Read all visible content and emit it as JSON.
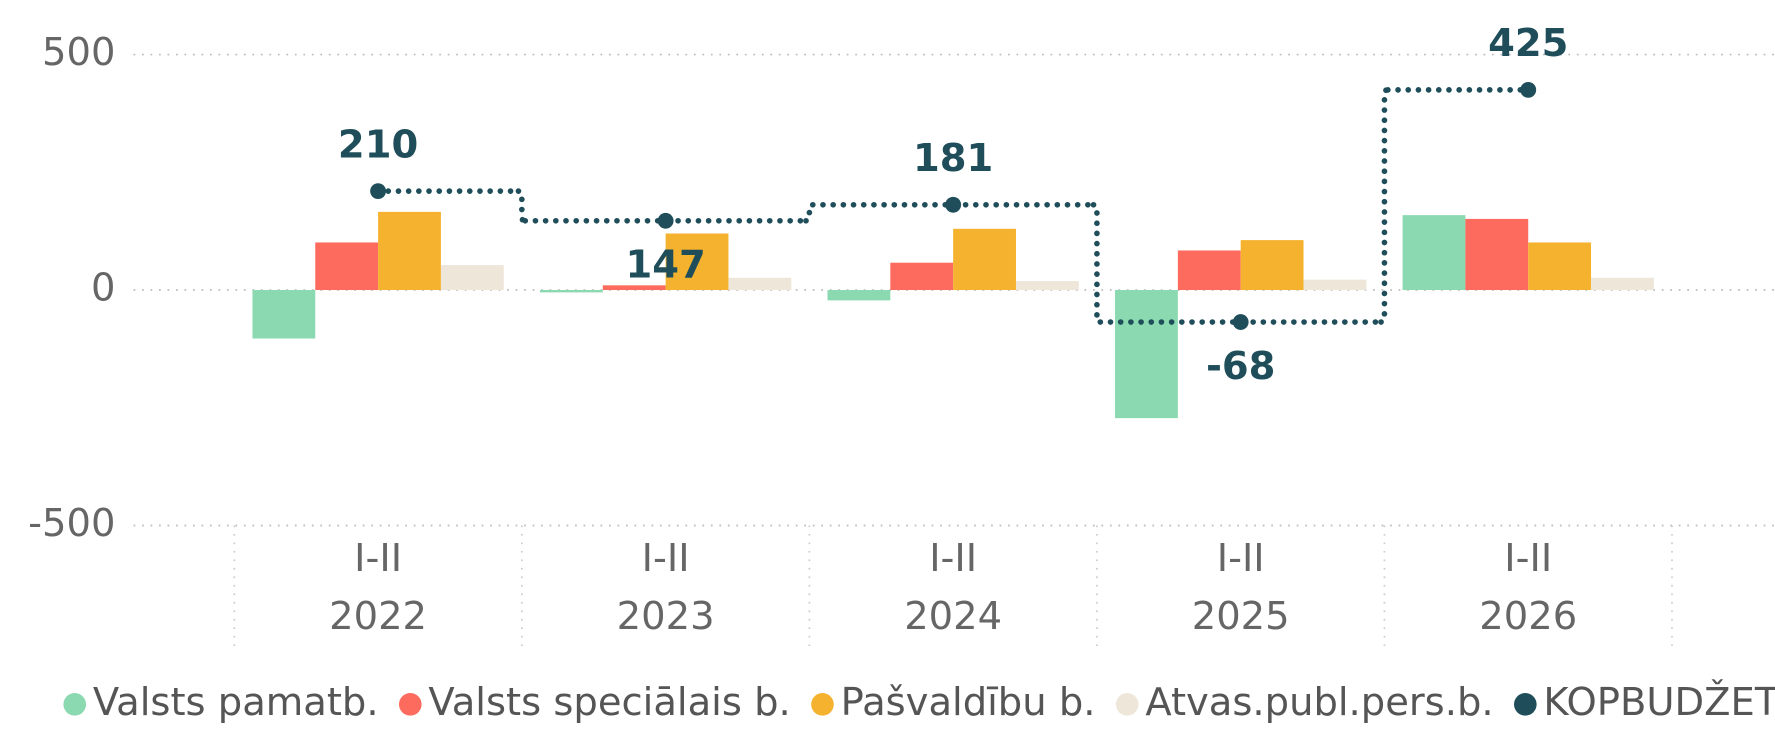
{
  "chart_data": {
    "type": "bar",
    "categories": [
      [
        "I-II",
        "2022"
      ],
      [
        "I-II",
        "2023"
      ],
      [
        "I-II",
        "2024"
      ],
      [
        "I-II",
        "2025"
      ],
      [
        "I-II",
        "2026"
      ]
    ],
    "series": [
      {
        "name": "Valsts pamatb.",
        "color": "#8ad9b0",
        "values": [
          -103,
          -5,
          -22,
          -272,
          159
        ]
      },
      {
        "name": "Valsts speciālais b.",
        "color": "#fd6b5f",
        "values": [
          101,
          10,
          58,
          84,
          151
        ]
      },
      {
        "name": "Pašvaldību b.",
        "color": "#f5b22e",
        "values": [
          166,
          120,
          130,
          106,
          101
        ]
      },
      {
        "name": "Atvas.publ.pers.b.",
        "color": "#efe6da",
        "values": [
          53,
          26,
          19,
          22,
          26
        ]
      },
      {
        "name": "KOPBUDŽETS",
        "color": "#1f4e5a",
        "type": "step-line",
        "values": [
          210,
          147,
          181,
          -68,
          425
        ]
      }
    ],
    "ylim": [
      -500,
      500
    ],
    "yticks": [
      -500,
      0,
      500
    ],
    "grid": true,
    "legend": "bottom"
  }
}
